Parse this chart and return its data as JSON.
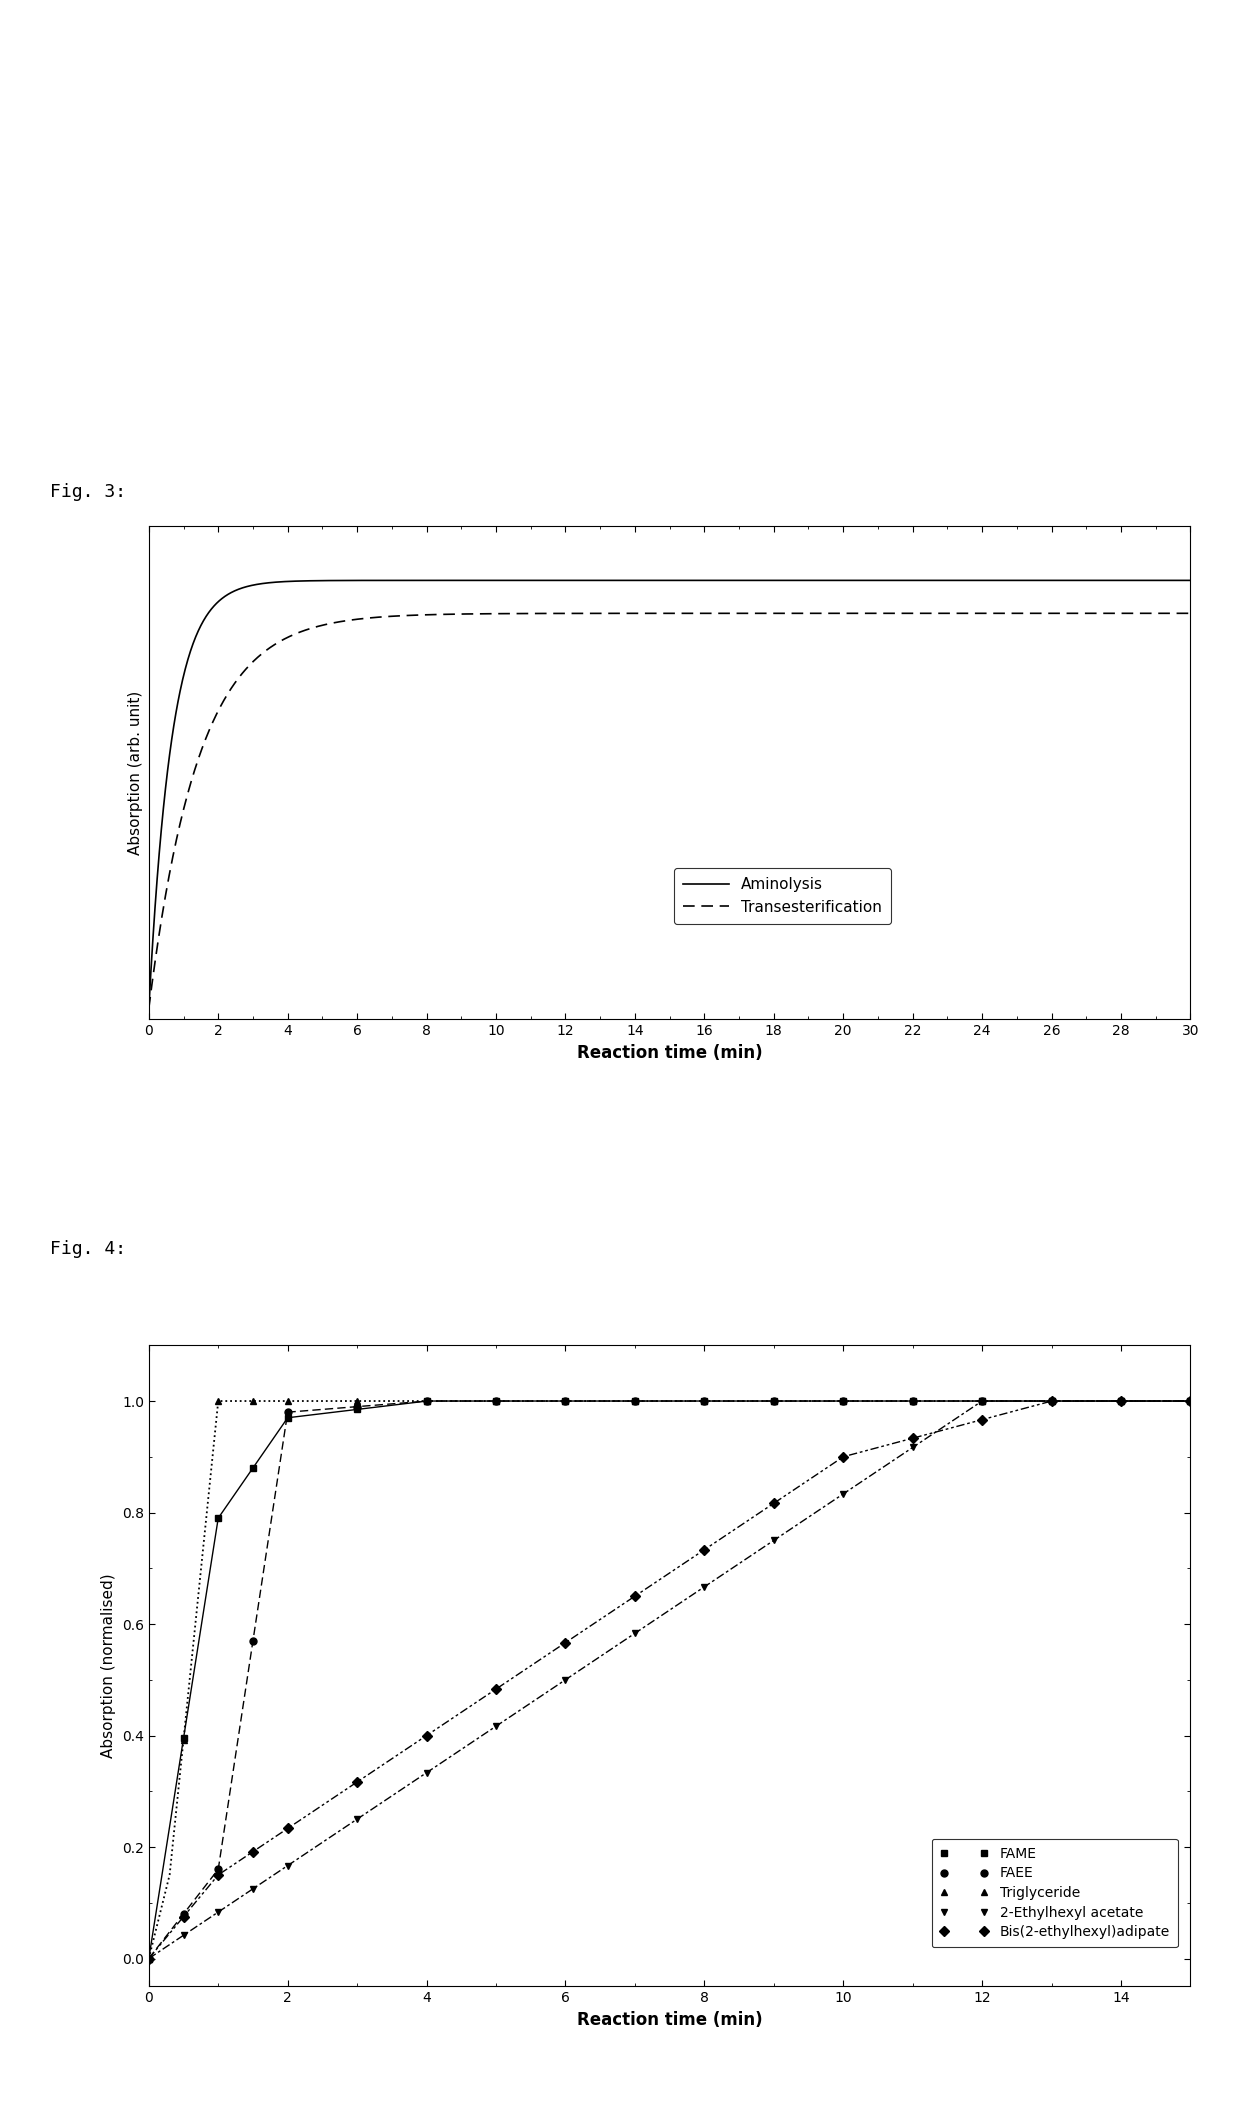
{
  "fig3_title": "Fig. 3:",
  "fig4_title": "Fig. 4:",
  "fig3_xlabel": "Reaction time (min)",
  "fig3_ylabel": "Absorption (arb. unit)",
  "fig3_xlim": [
    0,
    30
  ],
  "fig3_xticks": [
    0,
    2,
    4,
    6,
    8,
    10,
    12,
    14,
    16,
    18,
    20,
    22,
    24,
    26,
    28,
    30
  ],
  "fig4_xlabel": "Reaction time (min)",
  "fig4_ylabel": "Absorption (normalised)",
  "fig4_xlim": [
    0,
    15
  ],
  "fig4_ylim": [
    -0.05,
    1.1
  ],
  "fig4_xticks": [
    0,
    2,
    4,
    6,
    8,
    10,
    12,
    14
  ],
  "fig4_yticks": [
    0.0,
    0.2,
    0.4,
    0.6,
    0.8,
    1.0
  ],
  "background_color": "#ffffff",
  "text_color": "#000000",
  "fig3_legend_labels": [
    "Aminolysis",
    "Transesterification"
  ],
  "fig4_legend_labels": [
    "FAME",
    "FAEE",
    "Triglyceride",
    "2-Ethylhexyl acetate",
    "Bis(2-ethylhexyl)adipate"
  ]
}
